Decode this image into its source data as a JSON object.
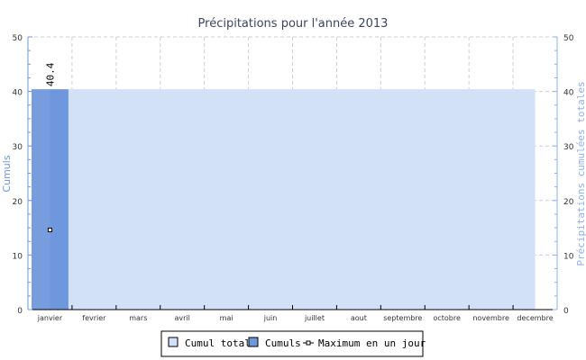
{
  "chart_data": {
    "type": "bar",
    "title": "Précipitations pour l'année 2013",
    "ylabel_left": "Cumuls",
    "ylabel_right": "Précipitations cumulées totales",
    "ylim": [
      0,
      50
    ],
    "yticks": [
      "0",
      "10",
      "20",
      "30",
      "40",
      "50"
    ],
    "grid": true,
    "categories": [
      "janvier",
      "fevrier",
      "mars",
      "avril",
      "mai",
      "juin",
      "juillet",
      "aout",
      "septembre",
      "octobre",
      "novembre",
      "decembre"
    ],
    "series": [
      {
        "name": "Cumul total",
        "type": "area",
        "color": "#d2e0f8",
        "values": [
          40.4,
          40.4,
          40.4,
          40.4,
          40.4,
          40.4,
          40.4,
          40.4,
          40.4,
          40.4,
          40.4,
          40.4
        ]
      },
      {
        "name": "Cumuls",
        "type": "bar",
        "color": "#6f97dd",
        "values": [
          40.4,
          0,
          0,
          0,
          0,
          0,
          0,
          0,
          0,
          0,
          0,
          0
        ]
      },
      {
        "name": "Maximum en un jour",
        "type": "point",
        "color": "#000000",
        "values": [
          14.6,
          null,
          null,
          null,
          null,
          null,
          null,
          null,
          null,
          null,
          null,
          null
        ]
      }
    ],
    "data_labels": [
      "40.4"
    ],
    "legend_position": "bottom"
  }
}
